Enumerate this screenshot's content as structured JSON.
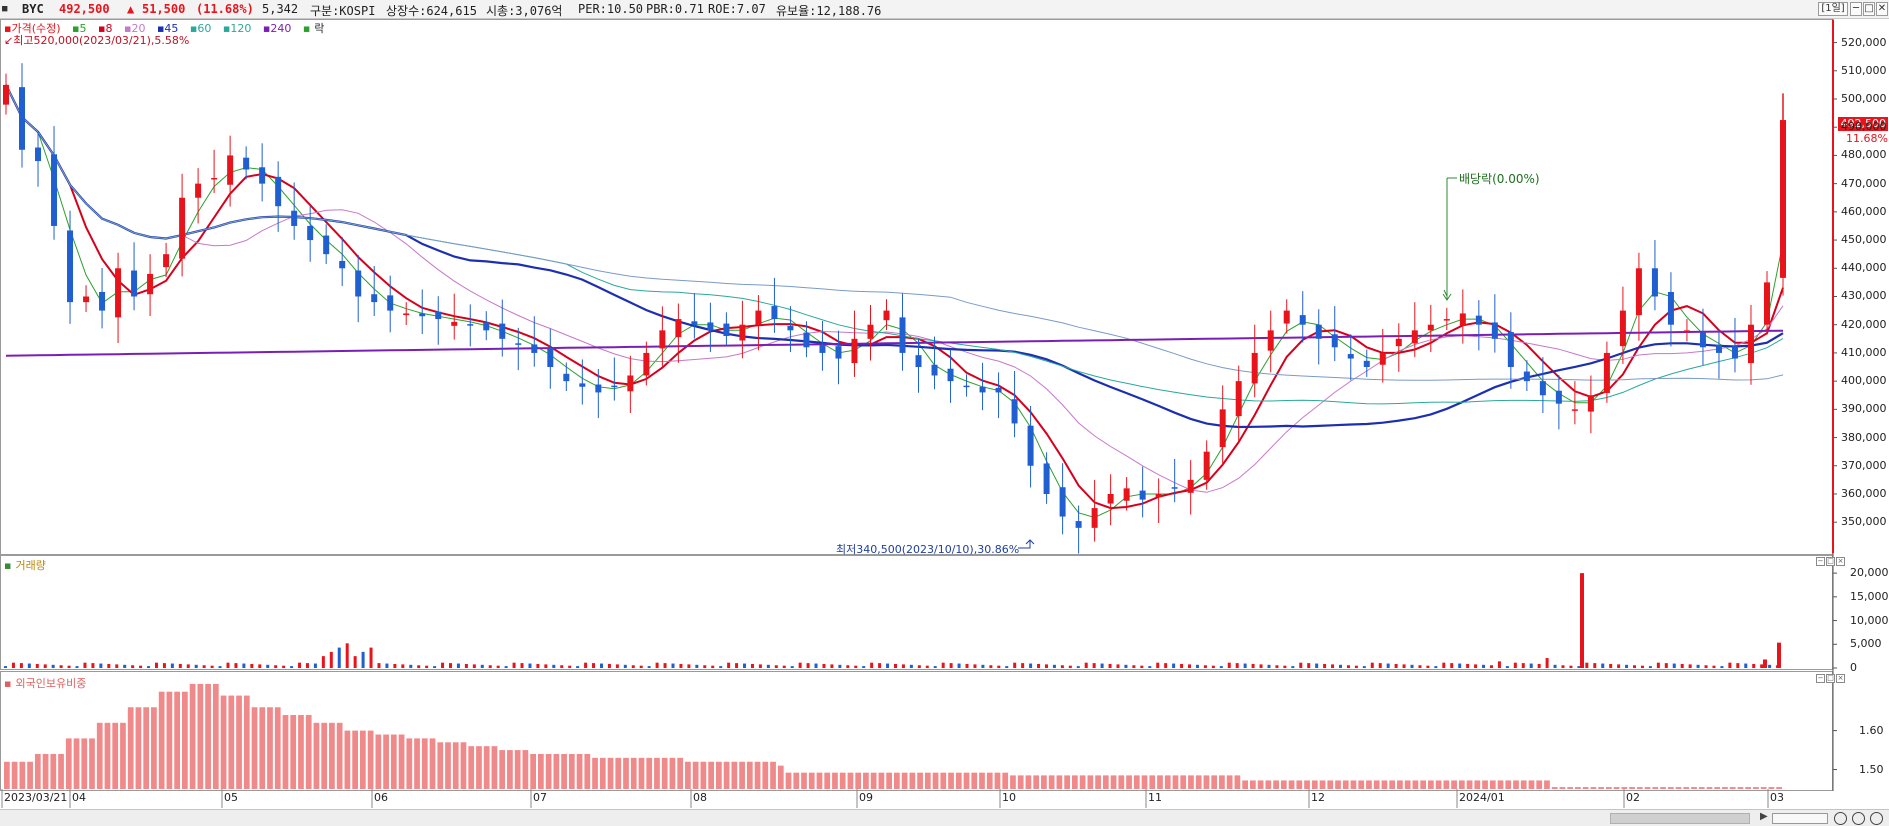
{
  "header": {
    "ticker": "BYC",
    "price": "492,500",
    "change_arrow": "▲",
    "change": "51,500",
    "change_pct": "(11.68%)",
    "volume": "5,342",
    "market": "구분:KOSPI",
    "shares": "상장수:624,615",
    "mcap": "시총:3,076억",
    "per": "PER:10.50",
    "pbr": "PBR:0.71",
    "roe": "ROE:7.07",
    "float": "유보율:12,188.76",
    "period_btn": "[1일]",
    "win_min": "─",
    "win_max": "□",
    "win_close": "✕"
  },
  "legend_main": {
    "price_label": "가격(수정)",
    "ma5": "5",
    "ma8": "8",
    "ma20": "20",
    "ma45": "45",
    "ma60": "60",
    "ma120": "120",
    "ma240": "240",
    "rak": "락",
    "high_note": "최고520,000(2023/03/21),5.58%"
  },
  "annotations": {
    "dividend": "배당락(0.00%)",
    "low_note": "최저340,500(2023/10/10),30.86%"
  },
  "right_tag": {
    "price": "492,500",
    "pct": "11.68%"
  },
  "legend_volume": "거래량",
  "legend_foreign": "외국인보유비중",
  "colors": {
    "up": "#e8141c",
    "down": "#1f5fd0",
    "ma5": "#2ca02c",
    "ma8": "#d6001c",
    "ma20": "#c878c8",
    "ma45": "#1c2fb0",
    "ma60": "#2aa89a",
    "ma120": "#7a9ac8",
    "ma240": "#7a1fb5",
    "foreign_bar": "#f08a8a"
  },
  "price_axis": [
    "520,000",
    "510,000",
    "500,000",
    "490,000",
    "480,000",
    "470,000",
    "460,000",
    "450,000",
    "440,000",
    "430,000",
    "420,000",
    "410,000",
    "400,000",
    "390,000",
    "380,000",
    "370,000",
    "360,000",
    "350,000"
  ],
  "volume_axis": [
    "20,000",
    "15,000",
    "10,000",
    "5,000",
    "0"
  ],
  "foreign_axis": [
    "1.60",
    "1.50"
  ],
  "x_axis": [
    "2023/03/21",
    "04",
    "05",
    "06",
    "07",
    "08",
    "09",
    "10",
    "11",
    "12",
    "2024/01",
    "02",
    "03"
  ],
  "chart_data": {
    "type": "candlestick",
    "title": "",
    "price_range": [
      340500,
      520000
    ],
    "high": {
      "value": 520000,
      "date": "2023/03/21"
    },
    "low": {
      "value": 340500,
      "date": "2023/10/10"
    },
    "last_close": 492500,
    "closes": [
      505000,
      482000,
      478000,
      455000,
      428000,
      430000,
      425000,
      440000,
      430000,
      438000,
      445000,
      465000,
      470000,
      472000,
      480000,
      475000,
      470000,
      462000,
      455000,
      450000,
      445000,
      440000,
      430000,
      428000,
      425000,
      424000,
      423000,
      422000,
      421000,
      420000,
      418000,
      415000,
      413000,
      410000,
      405000,
      400000,
      398000,
      396000,
      398000,
      402000,
      410000,
      418000,
      422000,
      420000,
      418000,
      416000,
      420000,
      425000,
      422000,
      418000,
      412000,
      410000,
      408000,
      415000,
      420000,
      425000,
      410000,
      405000,
      402000,
      400000,
      398000,
      396000,
      396000,
      385000,
      370000,
      360000,
      352000,
      348000,
      355000,
      360000,
      362000,
      358000,
      360000,
      362000,
      365000,
      375000,
      390000,
      400000,
      410000,
      418000,
      425000,
      420000,
      415000,
      412000,
      408000,
      405000,
      410000,
      415000,
      418000,
      420000,
      422000,
      424000,
      420000,
      415000,
      405000,
      400000,
      395000,
      392000,
      390000,
      395000,
      410000,
      425000,
      440000,
      430000,
      420000,
      418000,
      412000,
      410000,
      408000,
      420000,
      435000,
      492500
    ],
    "volume_spikes": [
      {
        "date": "2024/01 late",
        "value": 20000
      },
      {
        "date": "2024/03",
        "value": 5342
      }
    ],
    "foreign_ratio_range": [
      1.45,
      1.73
    ],
    "foreign_ratio": [
      1.52,
      1.54,
      1.58,
      1.62,
      1.66,
      1.7,
      1.72,
      1.69,
      1.66,
      1.64,
      1.62,
      1.6,
      1.59,
      1.58,
      1.57,
      1.56,
      1.55,
      1.54,
      1.54,
      1.53,
      1.53,
      1.53,
      1.52,
      1.52,
      1.52,
      1.51,
      1.51,
      1.51,
      1.5,
      1.5,
      1.5,
      1.49,
      1.49,
      1.49,
      1.48,
      1.48,
      1.48,
      1.48,
      1.47,
      1.47,
      1.47,
      1.47,
      1.47,
      1.47,
      1.46,
      1.46,
      1.46,
      1.46,
      1.46,
      1.46,
      1.46,
      1.46,
      1.45,
      1.45,
      1.45,
      1.45,
      1.45,
      1.45
    ]
  }
}
